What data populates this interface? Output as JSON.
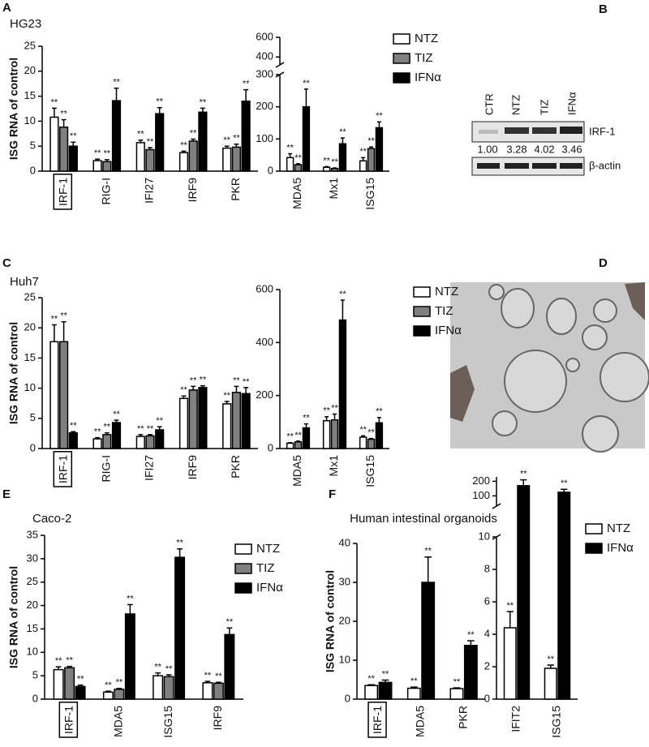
{
  "panel_labels": [
    "A",
    "B",
    "C",
    "D",
    "E",
    "F"
  ],
  "blot": {
    "lanes": [
      "CTR",
      "NTZ",
      "TIZ",
      "IFNα"
    ],
    "bands": [
      "IRF-1",
      "β-actin"
    ],
    "quantification": [
      "1.00",
      "3.28",
      "4.02",
      "3.46"
    ]
  },
  "chart_data": [
    {
      "type": "bar",
      "title": "HG23",
      "ylabel": "ISG RNA of control",
      "categories": [
        "IRF-1",
        "RIG-I",
        "IFI27",
        "IRF9",
        "PKR"
      ],
      "boxed_category_index": 0,
      "ylim": [
        0,
        25
      ],
      "yticks": [
        0,
        5,
        10,
        15,
        20,
        25
      ],
      "series": [
        {
          "color": "#ffffff",
          "values": [
            10.8,
            2.1,
            5.7,
            3.7,
            4.6
          ],
          "errors": [
            1.8,
            0.3,
            0.5,
            0.3,
            0.4
          ],
          "significance": [
            "**",
            "**",
            "**",
            "**",
            "**"
          ]
        },
        {
          "color": "#808080",
          "values": [
            8.8,
            1.9,
            4.3,
            6.0,
            4.8
          ],
          "errors": [
            1.5,
            0.4,
            0.4,
            0.4,
            0.6
          ],
          "significance": [
            "**",
            "**",
            "**",
            "**",
            "**"
          ]
        },
        {
          "color": "#000000",
          "values": [
            5.0,
            14.1,
            11.5,
            11.8,
            14.0
          ],
          "errors": [
            0.8,
            2.5,
            1.2,
            0.8,
            2.3
          ],
          "significance": [
            "**",
            "**",
            "**",
            "**",
            "**"
          ]
        }
      ]
    },
    {
      "type": "bar",
      "categories": [
        "MDA5",
        "Mx1",
        "ISG15"
      ],
      "ylim": [
        0,
        600
      ],
      "axis_break": [
        300,
        320
      ],
      "yticks": [
        0,
        100,
        200,
        300,
        400,
        600
      ],
      "legend": true,
      "series": [
        {
          "name": "NTZ",
          "color": "#ffffff",
          "values": [
            42,
            12,
            32
          ],
          "errors": [
            12,
            2,
            10
          ],
          "significance": [
            "**",
            "**",
            "**"
          ]
        },
        {
          "name": "TIZ",
          "color": "#808080",
          "values": [
            20,
            8,
            70
          ],
          "errors": [
            3,
            2,
            5
          ],
          "significance": [
            "**",
            "**",
            "**"
          ]
        },
        {
          "name": "IFNα",
          "color": "#000000",
          "values": [
            200,
            85,
            135
          ],
          "errors": [
            55,
            18,
            18
          ],
          "significance": [
            "**",
            "**",
            "**"
          ]
        }
      ]
    },
    {
      "type": "bar",
      "title": "Huh7",
      "ylabel": "ISG RNA of control",
      "categories": [
        "IRF-1",
        "RIG-I",
        "IFI27",
        "IRF9",
        "PKR"
      ],
      "boxed_category_index": 0,
      "ylim": [
        0,
        25
      ],
      "yticks": [
        0,
        5,
        10,
        15,
        20,
        25
      ],
      "series": [
        {
          "color": "#ffffff",
          "values": [
            17.7,
            1.6,
            2.0,
            8.3,
            7.4
          ],
          "errors": [
            2.8,
            0.2,
            0.3,
            0.4,
            0.4
          ],
          "significance": [
            "**",
            "**",
            "**",
            "**",
            "**"
          ]
        },
        {
          "color": "#808080",
          "values": [
            17.7,
            2.3,
            2.1,
            9.7,
            9.3
          ],
          "errors": [
            3.3,
            0.3,
            0.2,
            0.6,
            1.0
          ],
          "significance": [
            "**",
            "**",
            "**",
            "**",
            "**"
          ]
        },
        {
          "color": "#000000",
          "values": [
            2.6,
            4.3,
            3.1,
            10.1,
            9.1
          ],
          "errors": [
            0.2,
            0.4,
            0.5,
            0.3,
            1.0
          ],
          "significance": [
            "**",
            "**",
            "**",
            "**",
            "**"
          ]
        }
      ]
    },
    {
      "type": "bar",
      "categories": [
        "MDA5",
        "Mx1",
        "ISG15"
      ],
      "ylim": [
        0,
        600
      ],
      "yticks": [
        0,
        200,
        400,
        600
      ],
      "legend": true,
      "series": [
        {
          "name": "NTZ",
          "color": "#ffffff",
          "values": [
            20,
            105,
            43
          ],
          "errors": [
            2,
            15,
            5
          ],
          "significance": [
            "**",
            "**",
            "**"
          ]
        },
        {
          "name": "TIZ",
          "color": "#808080",
          "values": [
            25,
            108,
            35
          ],
          "errors": [
            3,
            22,
            3
          ],
          "significance": [
            "**",
            "**",
            "**"
          ]
        },
        {
          "name": "IFNα",
          "color": "#000000",
          "values": [
            78,
            485,
            97
          ],
          "errors": [
            15,
            75,
            20
          ],
          "significance": [
            "**",
            "**",
            "**"
          ]
        }
      ]
    },
    {
      "type": "bar",
      "title": "Caco-2",
      "ylabel": "ISG RNA of control",
      "categories": [
        "IRF-1",
        "MDA5",
        "ISG15",
        "IRF9"
      ],
      "boxed_category_index": 0,
      "ylim": [
        0,
        35
      ],
      "yticks": [
        0,
        5,
        10,
        15,
        20,
        25,
        30,
        35
      ],
      "legend": true,
      "series": [
        {
          "name": "NTZ",
          "color": "#ffffff",
          "values": [
            6.3,
            1.5,
            5.0,
            3.5
          ],
          "errors": [
            0.6,
            0.2,
            0.6,
            0.3
          ],
          "significance": [
            "**",
            "**",
            "**",
            "**"
          ]
        },
        {
          "name": "TIZ",
          "color": "#808080",
          "values": [
            6.7,
            2.1,
            4.8,
            3.4
          ],
          "errors": [
            0.3,
            0.2,
            0.4,
            0.2
          ],
          "significance": [
            "**",
            "**",
            "**",
            "**"
          ]
        },
        {
          "name": "IFNα",
          "color": "#000000",
          "values": [
            2.7,
            18.2,
            30.3,
            13.8
          ],
          "errors": [
            0.3,
            2.0,
            1.8,
            1.4
          ],
          "significance": [
            "**",
            "**",
            "**",
            "**"
          ]
        }
      ]
    },
    {
      "type": "bar",
      "title": "Human intestinal organoids",
      "ylabel": "ISG RNA of control",
      "categories": [
        "IRF-1",
        "MDA5",
        "PKR"
      ],
      "boxed_category_index": 0,
      "ylim": [
        0,
        40
      ],
      "yticks": [
        0,
        10,
        20,
        30,
        40
      ],
      "series": [
        {
          "color": "#ffffff",
          "values": [
            3.5,
            2.8,
            2.7
          ],
          "errors": [
            0.2,
            0.3,
            0.2
          ],
          "significance": [
            "**",
            "**",
            "**"
          ]
        },
        {
          "color": "#000000",
          "values": [
            4.3,
            30.0,
            13.8
          ],
          "errors": [
            0.6,
            6.5,
            1.2
          ],
          "significance": [
            "**",
            "**",
            "**"
          ]
        }
      ]
    },
    {
      "type": "bar",
      "categories": [
        "IFIT2",
        "ISG15"
      ],
      "ylim": [
        0,
        230
      ],
      "axis_break": [
        10,
        30
      ],
      "yticks": [
        0,
        2,
        4,
        6,
        8,
        10,
        100,
        200
      ],
      "legend": true,
      "series": [
        {
          "name": "NTZ",
          "color": "#ffffff",
          "values": [
            4.4,
            1.9
          ],
          "errors": [
            1.0,
            0.2
          ],
          "significance": [
            "**",
            "**"
          ]
        },
        {
          "name": "IFNα",
          "color": "#000000",
          "values": [
            170,
            125
          ],
          "errors": [
            40,
            20
          ],
          "significance": [
            "**",
            "**"
          ]
        }
      ]
    }
  ]
}
